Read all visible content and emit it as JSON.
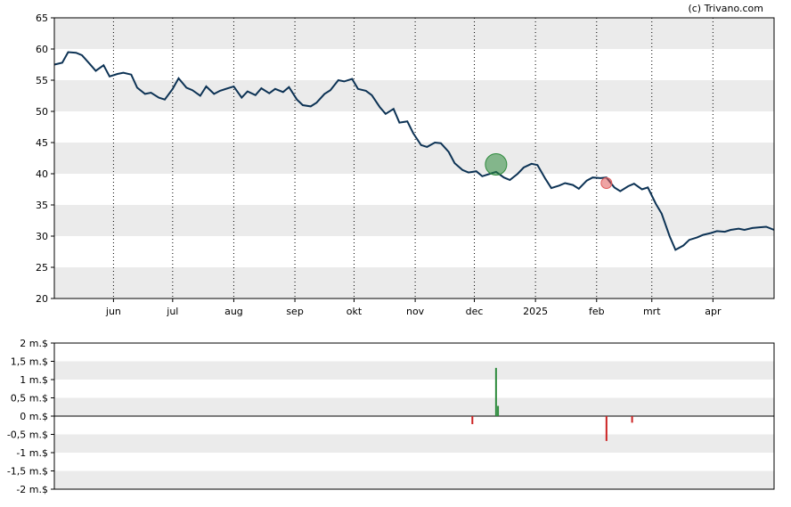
{
  "copyright": "(c) Trivano.com",
  "chart_data": [
    {
      "type": "line",
      "ylim": [
        20,
        65
      ],
      "yticks": [
        20,
        25,
        30,
        35,
        40,
        45,
        50,
        55,
        60,
        65
      ],
      "ytick_labels": [
        "20",
        "25",
        "30",
        "35",
        "40",
        "45",
        "50",
        "55",
        "60",
        "65"
      ],
      "xticks": [
        {
          "x": "2024-06-01",
          "label": "jun"
        },
        {
          "x": "2024-07-01",
          "label": "jul"
        },
        {
          "x": "2024-08-01",
          "label": "aug"
        },
        {
          "x": "2024-09-01",
          "label": "sep"
        },
        {
          "x": "2024-10-01",
          "label": "okt"
        },
        {
          "x": "2024-11-01",
          "label": "nov"
        },
        {
          "x": "2024-12-01",
          "label": "dec"
        },
        {
          "x": "2025-01-01",
          "label": "2025"
        },
        {
          "x": "2025-02-01",
          "label": "feb"
        },
        {
          "x": "2025-03-01",
          "label": "mrt"
        },
        {
          "x": "2025-04-01",
          "label": "apr"
        }
      ],
      "xlim": [
        "2024-05-02",
        "2025-05-02"
      ],
      "grid": "alternating horizontal bands, dotted vertical lines",
      "line_color": "#0d3355",
      "series": [
        {
          "x": [
            "2024-05-02",
            "2024-05-06",
            "2024-05-09",
            "2024-05-13",
            "2024-05-16",
            "2024-05-20",
            "2024-05-23",
            "2024-05-27",
            "2024-05-30",
            "2024-06-03",
            "2024-06-06",
            "2024-06-10",
            "2024-06-13",
            "2024-06-17",
            "2024-06-20",
            "2024-06-24",
            "2024-06-27",
            "2024-07-01",
            "2024-07-04",
            "2024-07-08",
            "2024-07-11",
            "2024-07-15",
            "2024-07-18",
            "2024-07-22",
            "2024-07-25",
            "2024-07-29",
            "2024-08-01",
            "2024-08-05",
            "2024-08-08",
            "2024-08-12",
            "2024-08-15",
            "2024-08-19",
            "2024-08-22",
            "2024-08-26",
            "2024-08-29",
            "2024-09-02",
            "2024-09-05",
            "2024-09-09",
            "2024-09-12",
            "2024-09-16",
            "2024-09-19",
            "2024-09-23",
            "2024-09-26",
            "2024-09-30",
            "2024-10-03",
            "2024-10-07",
            "2024-10-10",
            "2024-10-14",
            "2024-10-17",
            "2024-10-21",
            "2024-10-24",
            "2024-10-28",
            "2024-10-31",
            "2024-11-04",
            "2024-11-07",
            "2024-11-11",
            "2024-11-14",
            "2024-11-18",
            "2024-11-21",
            "2024-11-25",
            "2024-11-28",
            "2024-12-02",
            "2024-12-05",
            "2024-12-09",
            "2024-12-12",
            "2024-12-16",
            "2024-12-19",
            "2024-12-23",
            "2024-12-26",
            "2024-12-30",
            "2025-01-02",
            "2025-01-06",
            "2025-01-09",
            "2025-01-13",
            "2025-01-16",
            "2025-01-20",
            "2025-01-23",
            "2025-01-27",
            "2025-01-30",
            "2025-02-03",
            "2025-02-06",
            "2025-02-10",
            "2025-02-13",
            "2025-02-17",
            "2025-02-20",
            "2025-02-24",
            "2025-02-27",
            "2025-03-03",
            "2025-03-06",
            "2025-03-10",
            "2025-03-13",
            "2025-03-17",
            "2025-03-20",
            "2025-03-24",
            "2025-03-27",
            "2025-03-31",
            "2025-04-03",
            "2025-04-07",
            "2025-04-10",
            "2025-04-14",
            "2025-04-17",
            "2025-04-21",
            "2025-04-24",
            "2025-04-28",
            "2025-05-02"
          ],
          "y": [
            57.5,
            57.8,
            59.5,
            59.4,
            59.0,
            57.6,
            56.5,
            57.4,
            55.6,
            56.0,
            56.2,
            55.9,
            53.8,
            52.8,
            53.0,
            52.2,
            51.9,
            53.6,
            55.3,
            53.8,
            53.4,
            52.5,
            54.0,
            52.8,
            53.3,
            53.7,
            54.0,
            52.2,
            53.2,
            52.6,
            53.7,
            52.9,
            53.6,
            53.1,
            53.9,
            51.9,
            51.0,
            50.8,
            51.4,
            52.8,
            53.4,
            55.0,
            54.8,
            55.2,
            53.6,
            53.3,
            52.6,
            50.7,
            49.6,
            50.4,
            48.2,
            48.4,
            46.5,
            44.6,
            44.3,
            45.0,
            44.9,
            43.5,
            41.7,
            40.6,
            40.2,
            40.4,
            39.6,
            40.0,
            40.3,
            39.4,
            39.0,
            40.0,
            41.0,
            41.6,
            41.4,
            39.2,
            37.7,
            38.1,
            38.5,
            38.2,
            37.6,
            38.9,
            39.4,
            39.3,
            39.4,
            37.8,
            37.2,
            38.0,
            38.4,
            37.5,
            37.8,
            35.2,
            33.6,
            30.0,
            27.8,
            28.5,
            29.4,
            29.8,
            30.2,
            30.5,
            30.8,
            30.7,
            31.0,
            31.2,
            31.0,
            31.3,
            31.4,
            31.5,
            31.0
          ],
          "markers": [
            {
              "x": "2024-12-12",
              "y": 41.5,
              "color": "#2e8b3d",
              "size": "large"
            },
            {
              "x": "2025-02-06",
              "y": 38.5,
              "color": "#e05a5a",
              "size": "small"
            }
          ]
        }
      ]
    },
    {
      "type": "bar",
      "ylim": [
        -2,
        2
      ],
      "yticks": [
        -2,
        -1.5,
        -1,
        -0.5,
        0,
        0.5,
        1,
        1.5,
        2
      ],
      "ytick_labels": [
        "-2 m.$",
        "-1,5 m.$",
        "-1 m.$",
        "-0,5 m.$",
        "0 m.$",
        "0,5 m.$",
        "1 m.$",
        "1,5 m.$",
        "2 m.$"
      ],
      "unit": "m.$",
      "grid": "alternating horizontal bands",
      "bars": [
        {
          "x": "2024-11-30",
          "value": -0.22,
          "color": "#cc2222"
        },
        {
          "x": "2024-12-12",
          "value": 1.32,
          "color": "#2e8b3d"
        },
        {
          "x": "2024-12-13",
          "value": 0.28,
          "color": "#2e8b3d"
        },
        {
          "x": "2025-02-06",
          "value": -0.68,
          "color": "#cc2222"
        },
        {
          "x": "2025-02-19",
          "value": -0.18,
          "color": "#cc2222"
        }
      ]
    }
  ]
}
